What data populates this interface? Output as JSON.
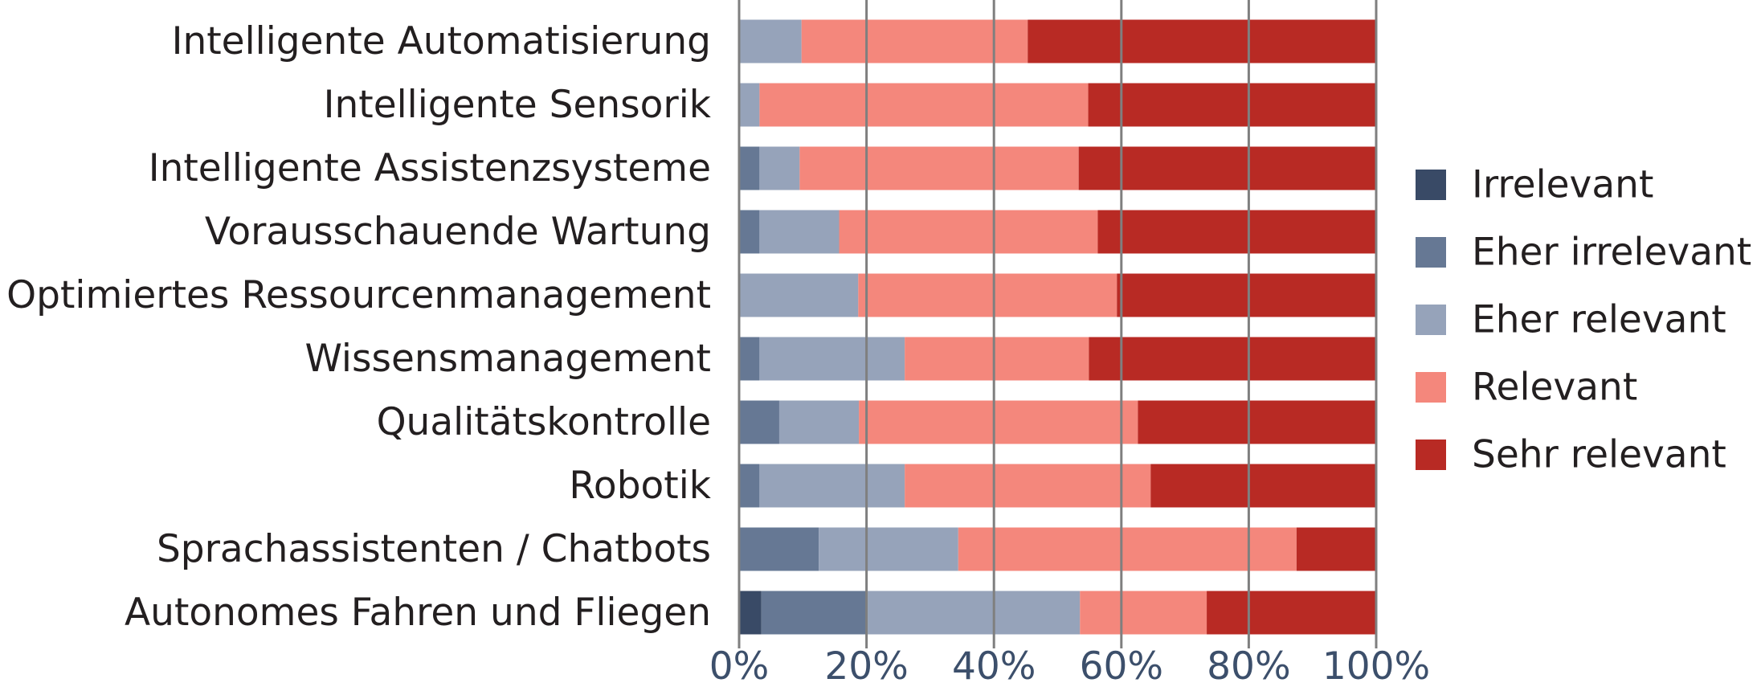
{
  "chart_data": {
    "type": "bar",
    "orientation": "horizontal",
    "stacked": "percent",
    "categories": [
      "Intelligente Automatisierung",
      "Intelligente Sensorik",
      "Intelligente Assistenzsysteme",
      "Vorausschauende Wartung",
      "Optimiertes Ressourcenmanagement",
      "Wissensmanagement",
      "Qualitätskontrolle",
      "Robotik",
      "Sprachassistenten / Chatbots",
      "Autonomes Fahren und Fliegen"
    ],
    "series": [
      {
        "name": "Irrelevant",
        "color": "#394a66",
        "values": [
          0,
          0,
          0,
          0,
          0,
          0,
          0,
          0,
          0,
          3.5
        ]
      },
      {
        "name": "Eher irrelevant",
        "color": "#667894",
        "values": [
          0,
          0,
          3.2,
          3.2,
          0,
          3.2,
          6.3,
          3.2,
          12.5,
          16.7
        ]
      },
      {
        "name": "Eher relevant",
        "color": "#96a3ba",
        "values": [
          9.8,
          3.2,
          6.3,
          12.5,
          18.7,
          22.8,
          12.5,
          22.8,
          21.9,
          33.3
        ]
      },
      {
        "name": "Relevant",
        "color": "#f4877c",
        "values": [
          35.5,
          51.6,
          43.8,
          40.6,
          40.6,
          28.9,
          43.8,
          38.6,
          53.1,
          19.9
        ]
      },
      {
        "name": "Sehr relevant",
        "color": "#b82a24",
        "values": [
          54.7,
          45.2,
          46.7,
          43.7,
          40.7,
          45.1,
          37.4,
          35.4,
          12.5,
          26.6
        ]
      }
    ],
    "xlim": [
      0,
      100
    ],
    "xticks": [
      "0%",
      "20%",
      "40%",
      "60%",
      "80%",
      "100%"
    ],
    "grid": "vertical",
    "legend": "right"
  }
}
